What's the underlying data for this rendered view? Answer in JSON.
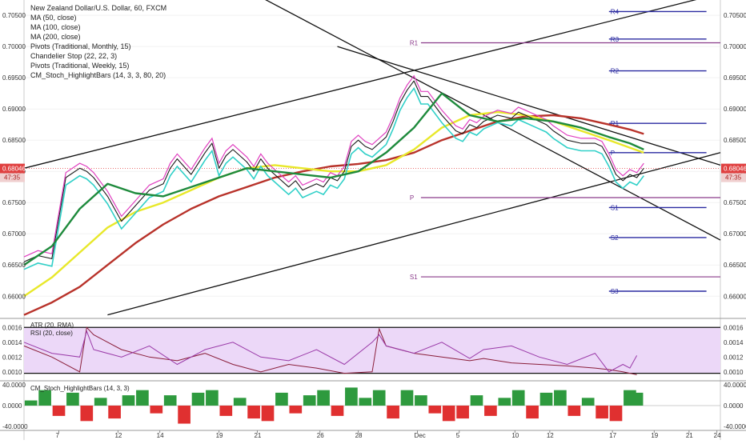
{
  "header": {
    "title": "New Zealand Dollar/U.S. Dollar, 60, FXCM",
    "indicators": [
      "MA (50, close)",
      "MA (100, close)",
      "MA (200, close)",
      "Pivots (Traditional, Monthly, 15)",
      "Chandelier Stop (22, 22, 3)",
      "Pivots (Traditional, Weekly, 15)",
      "CM_Stoch_HighlightBars (14, 3, 3, 80, 20)"
    ]
  },
  "colors": {
    "price_line": "#1a1a1a",
    "ma50": "#1e8a3c",
    "ma100": "#e8e82a",
    "ma200": "#b8322a",
    "chandelier": "#e040c0",
    "cyan_band": "#30d0c8",
    "monthly_pivot": "#8a3a8a",
    "weekly_pivot": "#2a2aa0",
    "current_price": "#e04040",
    "rsi_fill": "#ecd8f8",
    "atr": "#8a1e3a",
    "rsi": "#9a3aa8",
    "stoch_pos": "#2e9a3e",
    "stoch_neg": "#e03030"
  },
  "chart_data": [
    {
      "type": "line",
      "panel": "price",
      "title": "New Zealand Dollar/U.S. Dollar, 60, FXCM",
      "x_ticks": [
        "7",
        "12",
        "14",
        "19",
        "21",
        "26",
        "28",
        "Dec",
        "5",
        "10",
        "12",
        "17",
        "19",
        "21",
        "24"
      ],
      "x_range": [
        0,
        100
      ],
      "y_ticks": [
        "0.70500",
        "0.70000",
        "0.69500",
        "0.69000",
        "0.68500",
        "0.68000",
        "0.67500",
        "0.67000",
        "0.66500",
        "0.66000"
      ],
      "ylim": [
        0.6567,
        0.7072
      ],
      "current_price_label": "0.68046",
      "countdown_label": "47:35",
      "current_price": 0.68046,
      "series": [
        {
          "name": "",
          "role": "price",
          "x": [
            0,
            2,
            4,
            6,
            8,
            9,
            10,
            12,
            13,
            14,
            16,
            18,
            20,
            21,
            22,
            24,
            26,
            27,
            28,
            29,
            30,
            32,
            33,
            34,
            35,
            36,
            38,
            39,
            40,
            42,
            43,
            44,
            45,
            46,
            47,
            48,
            49,
            50,
            51,
            52,
            53,
            54,
            55,
            56,
            57,
            58,
            60,
            62,
            63,
            64,
            65,
            66,
            68,
            70,
            71,
            72,
            74,
            75,
            76,
            78,
            80,
            82,
            83,
            84,
            85,
            86,
            87,
            88,
            89
          ],
          "values": [
            0.6655,
            0.6665,
            0.666,
            0.679,
            0.6805,
            0.68,
            0.679,
            0.676,
            0.674,
            0.672,
            0.6745,
            0.677,
            0.678,
            0.6805,
            0.682,
            0.6795,
            0.683,
            0.6845,
            0.6805,
            0.6825,
            0.6835,
            0.6815,
            0.68,
            0.682,
            0.6805,
            0.6795,
            0.6775,
            0.6785,
            0.677,
            0.678,
            0.6775,
            0.679,
            0.6785,
            0.68,
            0.684,
            0.685,
            0.684,
            0.6835,
            0.6845,
            0.6855,
            0.688,
            0.691,
            0.693,
            0.6945,
            0.692,
            0.692,
            0.689,
            0.6865,
            0.686,
            0.6875,
            0.687,
            0.688,
            0.689,
            0.6885,
            0.6895,
            0.689,
            0.688,
            0.6875,
            0.6865,
            0.685,
            0.6845,
            0.6845,
            0.684,
            0.682,
            0.6795,
            0.6785,
            0.6795,
            0.679,
            0.6805
          ]
        },
        {
          "name": "MA (50, close)",
          "role": "ma50",
          "x": [
            0,
            4,
            8,
            12,
            16,
            20,
            24,
            28,
            32,
            36,
            40,
            44,
            48,
            52,
            56,
            60,
            64,
            68,
            72,
            76,
            80,
            84,
            87,
            89
          ],
          "values": [
            0.665,
            0.668,
            0.674,
            0.678,
            0.6765,
            0.676,
            0.6775,
            0.679,
            0.6805,
            0.68,
            0.6795,
            0.679,
            0.68,
            0.683,
            0.687,
            0.6925,
            0.689,
            0.688,
            0.6885,
            0.688,
            0.687,
            0.6855,
            0.6845,
            0.6835
          ]
        },
        {
          "name": "MA (100, close)",
          "role": "ma100",
          "x": [
            0,
            4,
            8,
            12,
            16,
            20,
            24,
            28,
            32,
            36,
            40,
            44,
            48,
            52,
            56,
            60,
            64,
            68,
            72,
            76,
            80,
            84,
            87,
            89
          ],
          "values": [
            0.66,
            0.663,
            0.667,
            0.671,
            0.6735,
            0.675,
            0.677,
            0.679,
            0.6805,
            0.681,
            0.6805,
            0.68,
            0.68,
            0.681,
            0.6835,
            0.687,
            0.689,
            0.6895,
            0.689,
            0.688,
            0.6865,
            0.685,
            0.6838,
            0.683
          ]
        },
        {
          "name": "MA (200, close)",
          "role": "ma200",
          "x": [
            0,
            4,
            8,
            12,
            16,
            20,
            24,
            28,
            32,
            36,
            40,
            44,
            48,
            52,
            56,
            60,
            64,
            68,
            72,
            76,
            80,
            84,
            87,
            89
          ],
          "values": [
            0.657,
            0.659,
            0.6615,
            0.665,
            0.6685,
            0.6715,
            0.674,
            0.676,
            0.6775,
            0.679,
            0.68,
            0.6808,
            0.6812,
            0.6818,
            0.683,
            0.685,
            0.6865,
            0.688,
            0.6888,
            0.689,
            0.6885,
            0.6875,
            0.6867,
            0.686
          ]
        }
      ],
      "trendlines": [
        {
          "x": [
            0,
            100
          ],
          "values": [
            0.6805,
            0.7085
          ]
        },
        {
          "x": [
            12,
            100
          ],
          "values": [
            0.657,
            0.683
          ]
        },
        {
          "x": [
            33,
            100
          ],
          "values": [
            0.7085,
            0.669
          ]
        },
        {
          "x": [
            45,
            100
          ],
          "values": [
            0.7,
            0.681
          ]
        }
      ],
      "weekly_pivots": [
        {
          "label": "R4",
          "value": 0.7056,
          "x": [
            84,
            98
          ]
        },
        {
          "label": "R3",
          "value": 0.7012,
          "x": [
            84,
            98
          ]
        },
        {
          "label": "R2",
          "value": 0.6961,
          "x": [
            84,
            98
          ]
        },
        {
          "label": "R1",
          "value": 0.6877,
          "x": [
            84,
            98
          ]
        },
        {
          "label": "P",
          "value": 0.683,
          "x": [
            84,
            98
          ]
        },
        {
          "label": "S1",
          "value": 0.6742,
          "x": [
            84,
            98
          ]
        },
        {
          "label": "S2",
          "value": 0.6694,
          "x": [
            84,
            98
          ]
        },
        {
          "label": "S3",
          "value": 0.6608,
          "x": [
            84,
            98
          ]
        }
      ],
      "monthly_pivots": [
        {
          "label": "R1",
          "value": 0.7006,
          "x": [
            57,
            100
          ]
        },
        {
          "label": "P",
          "value": 0.6758,
          "x": [
            57,
            100
          ]
        },
        {
          "label": "S1",
          "value": 0.6631,
          "x": [
            57,
            100
          ]
        }
      ]
    },
    {
      "type": "line",
      "panel": "atr_rsi",
      "labels": [
        "ATR (20, RMA)",
        "RSI (20, close)"
      ],
      "y_ticks": [
        "0.0016",
        "0.0014",
        "0.0012",
        "0.0010"
      ],
      "ylim": [
        0.0009,
        0.0017
      ],
      "band": [
        0.00098,
        0.0016
      ],
      "x": [
        0,
        4,
        8,
        9,
        10,
        14,
        18,
        22,
        26,
        30,
        34,
        38,
        42,
        46,
        50,
        51,
        52,
        56,
        60,
        64,
        66,
        70,
        74,
        78,
        82,
        84,
        86,
        87,
        88
      ],
      "atr": [
        0.00135,
        0.0012,
        0.001,
        0.0016,
        0.0015,
        0.0013,
        0.0012,
        0.00115,
        0.00125,
        0.0011,
        0.001,
        0.0011,
        0.00105,
        0.00098,
        0.001,
        0.00158,
        0.00135,
        0.00125,
        0.0012,
        0.00115,
        0.00118,
        0.00112,
        0.0011,
        0.00108,
        0.00105,
        0.00103,
        0.001,
        0.00098,
        0.00096
      ],
      "rsi": [
        0.0014,
        0.00125,
        0.0012,
        0.00155,
        0.0013,
        0.0012,
        0.00135,
        0.0011,
        0.0013,
        0.0014,
        0.0012,
        0.00115,
        0.0013,
        0.0011,
        0.0014,
        0.0015,
        0.00135,
        0.00125,
        0.0014,
        0.00118,
        0.0013,
        0.00135,
        0.0012,
        0.0011,
        0.00125,
        0.001,
        0.0011,
        0.00105,
        0.00122
      ]
    },
    {
      "type": "bar",
      "panel": "stoch",
      "label": "CM_Stoch_HighlightBars (14, 3, 3)",
      "y_ticks": [
        "40.0000",
        "0.0000",
        "-40.0000"
      ],
      "ylim": [
        -45,
        45
      ],
      "x": [
        1,
        3,
        5,
        7,
        9,
        11,
        13,
        15,
        17,
        19,
        21,
        23,
        25,
        27,
        29,
        31,
        33,
        35,
        37,
        39,
        41,
        43,
        45,
        47,
        49,
        51,
        53,
        55,
        57,
        59,
        61,
        63,
        65,
        67,
        69,
        71,
        73,
        75,
        77,
        79,
        81,
        83,
        85,
        87,
        88
      ],
      "values": [
        10,
        30,
        -20,
        25,
        -30,
        15,
        -25,
        20,
        30,
        -15,
        20,
        -35,
        25,
        30,
        -20,
        15,
        -25,
        -30,
        25,
        -15,
        20,
        30,
        -20,
        35,
        15,
        30,
        -25,
        30,
        20,
        -15,
        -30,
        -25,
        20,
        -20,
        15,
        30,
        -25,
        25,
        30,
        -20,
        15,
        -25,
        -30,
        30,
        25
      ]
    }
  ]
}
